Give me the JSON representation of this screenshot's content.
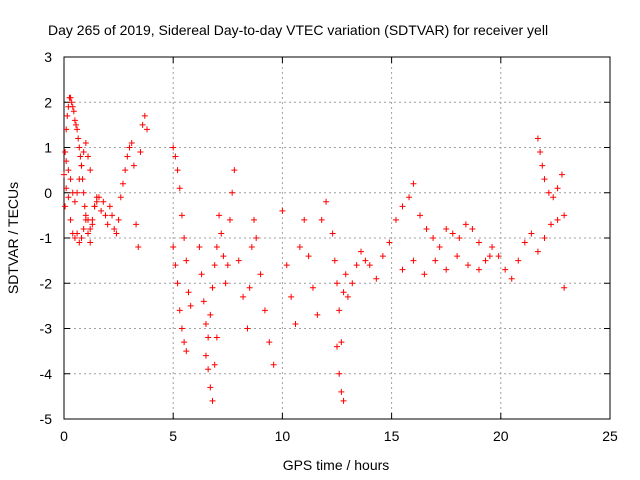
{
  "chart_data": {
    "type": "scatter",
    "title": "Day 265 of 2019, Sidereal Day-to-day VTEC variation (SDTVAR) for receiver yell",
    "xlabel": "GPS time / hours",
    "ylabel": "SDTVAR / TECUs",
    "xlim": [
      0,
      25
    ],
    "ylim": [
      -5,
      3
    ],
    "xticks": [
      "0",
      "5",
      "10",
      "15",
      "20",
      "25"
    ],
    "yticks": [
      "3",
      "2",
      "1",
      "0",
      "-1",
      "-2",
      "-3",
      "-4",
      "-5"
    ],
    "grid": true,
    "marker": "+",
    "color": "#ff0000",
    "series": [
      {
        "name": "SDTVAR",
        "x": [
          0.0,
          0.05,
          0.1,
          0.15,
          0.2,
          0.25,
          0.3,
          0.35,
          0.4,
          0.45,
          0.5,
          0.55,
          0.6,
          0.65,
          0.7,
          0.75,
          0.8,
          0.85,
          0.9,
          0.95,
          1.0,
          1.1,
          1.2,
          1.3,
          1.4,
          1.5,
          1.6,
          1.7,
          1.8,
          1.9,
          2.0,
          2.1,
          2.2,
          2.3,
          2.4,
          2.5,
          2.6,
          2.7,
          2.8,
          2.9,
          3.0,
          3.1,
          3.2,
          3.3,
          3.4,
          3.5,
          3.6,
          3.7,
          3.8,
          0.05,
          0.1,
          0.2,
          0.3,
          0.4,
          0.5,
          0.6,
          0.7,
          0.8,
          0.9,
          1.0,
          1.1,
          1.2,
          1.3,
          1.4,
          1.5,
          0.1,
          0.2,
          0.3,
          0.4,
          0.5,
          0.6,
          0.7,
          0.8,
          0.9,
          1.0,
          1.1,
          1.2,
          5.0,
          5.1,
          5.2,
          5.3,
          5.4,
          5.5,
          5.6,
          5.7,
          5.8,
          5.0,
          5.1,
          5.2,
          5.3,
          5.4,
          5.5,
          5.6,
          6.2,
          6.3,
          6.4,
          6.5,
          6.6,
          6.7,
          6.8,
          6.9,
          7.0,
          7.1,
          7.2,
          7.3,
          7.4,
          7.5,
          7.6,
          7.7,
          7.8,
          6.5,
          6.6,
          6.7,
          6.8,
          6.9,
          7.0,
          8.0,
          8.2,
          8.4,
          8.5,
          8.6,
          8.7,
          8.8,
          9.0,
          9.2,
          9.4,
          9.6,
          10.0,
          10.2,
          10.4,
          10.6,
          10.8,
          11.0,
          11.2,
          11.4,
          11.6,
          11.8,
          12.0,
          12.3,
          12.4,
          12.5,
          12.6,
          12.7,
          12.8,
          12.9,
          13.0,
          13.2,
          13.4,
          13.6,
          13.8,
          12.5,
          12.6,
          12.7,
          12.8,
          14.0,
          14.3,
          14.6,
          14.9,
          15.2,
          15.5,
          15.8,
          16.0,
          16.3,
          16.6,
          16.9,
          17.2,
          17.5,
          17.8,
          18.1,
          18.4,
          18.7,
          19.0,
          15.5,
          16.0,
          16.5,
          17.0,
          17.5,
          18.0,
          18.5,
          19.0,
          19.5,
          19.3,
          19.6,
          19.9,
          20.2,
          20.5,
          20.8,
          21.1,
          21.4,
          21.7,
          22.0,
          22.3,
          22.6,
          22.9,
          21.7,
          21.8,
          21.9,
          22.0,
          22.2,
          22.4,
          22.6,
          22.8,
          22.9
        ],
        "y": [
          0.4,
          0.9,
          1.4,
          1.7,
          1.9,
          2.1,
          2.1,
          2.0,
          1.9,
          1.8,
          1.6,
          1.5,
          1.4,
          1.2,
          1.0,
          0.8,
          0.6,
          0.3,
          0.0,
          -0.3,
          -0.5,
          -0.6,
          -0.8,
          -0.6,
          -0.3,
          -0.2,
          -0.1,
          -0.4,
          -0.2,
          -0.5,
          -0.7,
          -0.3,
          -0.5,
          -0.8,
          -0.9,
          -0.6,
          -0.1,
          0.2,
          0.5,
          0.8,
          1.0,
          1.1,
          0.6,
          -0.7,
          -1.2,
          0.9,
          1.5,
          1.7,
          1.4,
          -0.3,
          0.1,
          -0.1,
          -0.6,
          -0.9,
          -1.0,
          -0.9,
          -1.1,
          -1.0,
          -0.8,
          -0.6,
          -0.9,
          -1.1,
          -0.7,
          -0.3,
          -0.1,
          0.7,
          0.5,
          0.3,
          0.0,
          -0.2,
          0.0,
          0.3,
          0.6,
          0.9,
          1.1,
          0.8,
          0.5,
          1.0,
          0.8,
          0.5,
          0.1,
          -0.5,
          -1.0,
          -1.5,
          -2.2,
          -2.5,
          -1.2,
          -1.6,
          -2.0,
          -2.6,
          -3.0,
          -3.3,
          -3.5,
          -1.2,
          -1.8,
          -2.4,
          -2.9,
          -3.2,
          -2.7,
          -2.1,
          -1.6,
          -1.2,
          -0.5,
          -0.9,
          -1.4,
          -2.0,
          -1.6,
          -0.6,
          0.0,
          0.5,
          -3.6,
          -3.9,
          -4.3,
          -4.6,
          -3.8,
          -3.2,
          -1.5,
          -2.3,
          -3.0,
          -2.1,
          -1.2,
          -0.6,
          -1.0,
          -1.8,
          -2.6,
          -3.3,
          -3.8,
          -0.4,
          -1.6,
          -2.3,
          -2.9,
          -1.2,
          -0.6,
          -1.4,
          -2.1,
          -2.7,
          -0.6,
          -0.2,
          -0.9,
          -1.5,
          -2.0,
          -2.6,
          -3.3,
          -2.2,
          -1.8,
          -2.3,
          -2.0,
          -1.6,
          -1.3,
          -1.5,
          -3.4,
          -4.0,
          -4.4,
          -4.6,
          -1.6,
          -1.9,
          -1.4,
          -1.1,
          -0.6,
          -0.3,
          -0.1,
          0.2,
          -0.5,
          -0.8,
          -1.0,
          -1.2,
          -0.8,
          -0.9,
          -1.0,
          -0.7,
          -0.8,
          -1.1,
          -1.7,
          -1.5,
          -1.8,
          -1.5,
          -1.7,
          -1.4,
          -1.6,
          -1.7,
          -1.4,
          -1.5,
          -1.2,
          -1.4,
          -1.7,
          -1.9,
          -1.5,
          -1.1,
          -0.9,
          -1.3,
          -1.0,
          -0.7,
          -0.6,
          -0.5,
          1.2,
          0.9,
          0.6,
          0.3,
          0.0,
          -0.1,
          0.1,
          0.4,
          -2.1
        ]
      }
    ]
  }
}
